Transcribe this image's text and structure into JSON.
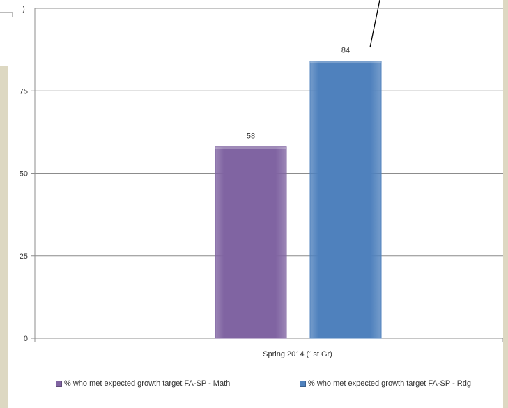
{
  "chart_data": {
    "type": "bar",
    "categories": [
      "Spring 2014 (1st Gr)"
    ],
    "series": [
      {
        "name": "% who met expected growth target FA-SP - Math",
        "values": [
          58
        ],
        "color": "#8064a2"
      },
      {
        "name": "% who met expected growth target FA-SP - Rdg",
        "values": [
          84
        ],
        "color": "#4f81bd"
      }
    ],
    "y_ticks": [
      "0",
      "25",
      "50",
      "75"
    ],
    "data_labels": [
      "58",
      "84"
    ],
    "ylim": [
      0,
      100
    ],
    "grid": true,
    "legend_position": "bottom",
    "partial_top_label": ")",
    "title": "",
    "xlabel": "",
    "ylabel": ""
  }
}
